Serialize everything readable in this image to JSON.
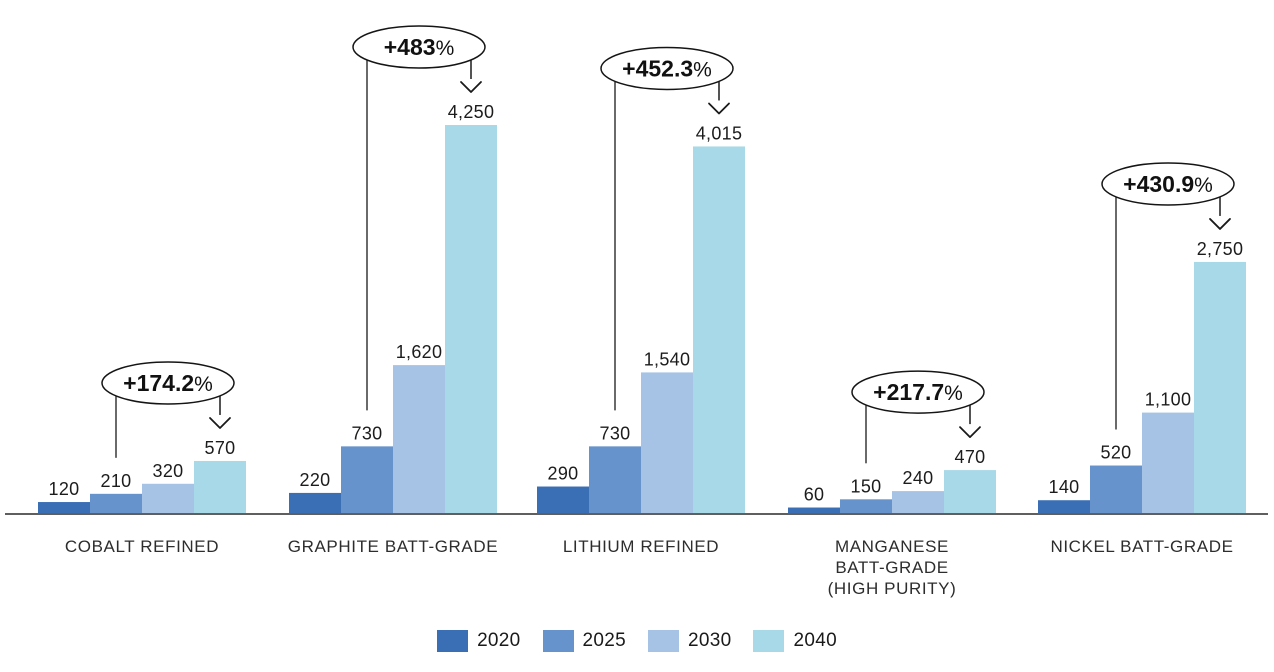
{
  "chart_data": {
    "type": "bar",
    "title": "",
    "grid": false,
    "legend_position": "bottom-center",
    "categories": [
      "2020",
      "2025",
      "2030",
      "2040"
    ],
    "legend": [
      {
        "label": "2020",
        "color": "#3a6fb5"
      },
      {
        "label": "2025",
        "color": "#6793cc"
      },
      {
        "label": "2030",
        "color": "#a6c3e6"
      },
      {
        "label": "2040",
        "color": "#a8d9e8"
      }
    ],
    "ylim": [
      0,
      4250
    ],
    "groups": [
      {
        "label_lines": [
          "COBALT REFINED"
        ],
        "values": [
          120,
          210,
          320,
          570
        ],
        "value_labels": [
          "120",
          "210",
          "320",
          "570"
        ],
        "growth": "+174.2%"
      },
      {
        "label_lines": [
          "GRAPHITE BATT-GRADE"
        ],
        "values": [
          220,
          730,
          1620,
          4250
        ],
        "value_labels": [
          "220",
          "730",
          "1,620",
          "4,250"
        ],
        "growth": "+483%"
      },
      {
        "label_lines": [
          "LITHIUM REFINED"
        ],
        "values": [
          290,
          730,
          1540,
          4015
        ],
        "value_labels": [
          "290",
          "730",
          "1,540",
          "4,015"
        ],
        "growth": "+452.3%"
      },
      {
        "label_lines": [
          "MANGANESE",
          "BATT-GRADE",
          "(HIGH PURITY)"
        ],
        "values": [
          60,
          150,
          240,
          470
        ],
        "value_labels": [
          "60",
          "150",
          "240",
          "470"
        ],
        "growth": "+217.7%"
      },
      {
        "label_lines": [
          "NICKEL BATT-GRADE"
        ],
        "values": [
          140,
          520,
          1100,
          2750
        ],
        "value_labels": [
          "140",
          "520",
          "1,100",
          "2,750"
        ],
        "growth": "+430.9%"
      }
    ],
    "annotation_style": {
      "ellipse_stroke": "#151515",
      "line_color": "#1a1a1a",
      "text_color": "#111111"
    },
    "axis_color": "#2a2a2a",
    "value_label_color": "#1c1c1c",
    "category_label_color": "#2d2d2d"
  }
}
